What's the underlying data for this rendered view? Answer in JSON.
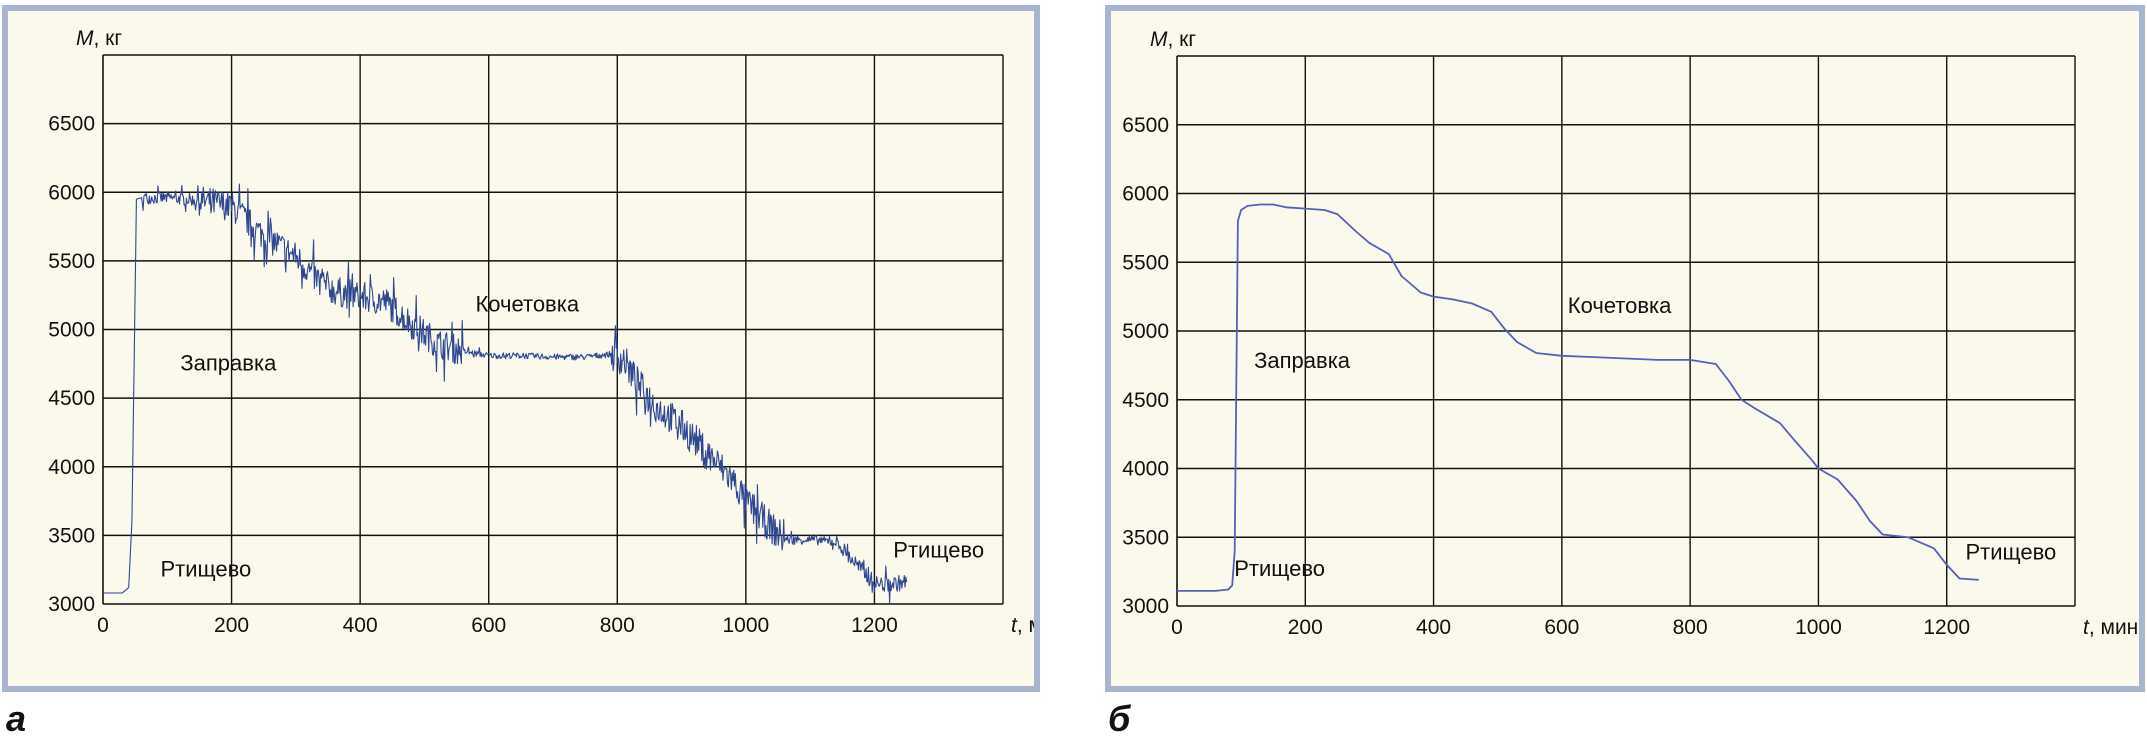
{
  "chart_data": [
    {
      "type": "line",
      "panel_label": "а",
      "ylabel_var": "M",
      "ylabel_unit": ", кг",
      "xlabel_var": "t",
      "xlabel_unit": ", мин",
      "xlim": [
        0,
        1400
      ],
      "ylim": [
        3000,
        7000
      ],
      "xticks": [
        0,
        200,
        400,
        600,
        800,
        1000,
        1200
      ],
      "yticks": [
        3000,
        3500,
        4000,
        4500,
        5000,
        5500,
        6000,
        6500
      ],
      "grid": true,
      "line_color": "#2e4790",
      "noisy": true,
      "series": [
        {
          "x": [
            0,
            30,
            40,
            45,
            52,
            60,
            100,
            150,
            200,
            240,
            300,
            330,
            360,
            400,
            440,
            480,
            520,
            560,
            600,
            650,
            700,
            750,
            790,
            810,
            830,
            860,
            900,
            940,
            980,
            1000,
            1030,
            1060,
            1100,
            1140,
            1180,
            1200,
            1220,
            1250
          ],
          "y": [
            3080,
            3080,
            3120,
            3600,
            5950,
            5960,
            5960,
            5940,
            5900,
            5720,
            5530,
            5380,
            5280,
            5240,
            5200,
            5040,
            4900,
            4840,
            4810,
            4810,
            4800,
            4800,
            4820,
            4780,
            4620,
            4440,
            4300,
            4100,
            3900,
            3750,
            3600,
            3470,
            3470,
            3450,
            3250,
            3150,
            3140,
            3160
          ]
        }
      ],
      "annotations": [
        {
          "text": "Кочетовка",
          "x": 660,
          "y": 5130
        },
        {
          "text": "Заправка",
          "x": 195,
          "y": 4700
        },
        {
          "text": "Ртищево",
          "x": 160,
          "y": 3200
        },
        {
          "text": "Ртищево",
          "x": 1300,
          "y": 3340
        }
      ]
    },
    {
      "type": "line",
      "panel_label": "б",
      "ylabel_var": "M",
      "ylabel_unit": ", кг",
      "xlabel_var": "t",
      "xlabel_unit": ", мин",
      "xlim": [
        0,
        1400
      ],
      "ylim": [
        3000,
        7000
      ],
      "xticks": [
        0,
        200,
        400,
        600,
        800,
        1000,
        1200
      ],
      "yticks": [
        3000,
        3500,
        4000,
        4500,
        5000,
        5500,
        6000,
        6500
      ],
      "grid": true,
      "line_color": "#5361b8",
      "noisy": false,
      "series": [
        {
          "x": [
            0,
            60,
            80,
            86,
            90,
            95,
            100,
            110,
            130,
            150,
            170,
            200,
            230,
            250,
            280,
            300,
            330,
            350,
            380,
            400,
            430,
            460,
            490,
            510,
            530,
            560,
            600,
            650,
            700,
            750,
            800,
            840,
            860,
            880,
            900,
            940,
            960,
            990,
            1000,
            1030,
            1060,
            1080,
            1100,
            1140,
            1180,
            1200,
            1220,
            1250
          ],
          "y": [
            3110,
            3110,
            3120,
            3150,
            3400,
            5800,
            5880,
            5910,
            5920,
            5920,
            5900,
            5890,
            5880,
            5850,
            5720,
            5640,
            5560,
            5400,
            5280,
            5250,
            5230,
            5200,
            5140,
            5020,
            4920,
            4840,
            4820,
            4810,
            4800,
            4790,
            4790,
            4760,
            4640,
            4500,
            4440,
            4330,
            4220,
            4060,
            4000,
            3920,
            3760,
            3620,
            3520,
            3500,
            3420,
            3300,
            3200,
            3190
          ]
        }
      ],
      "annotations": [
        {
          "text": "Кочетовка",
          "x": 690,
          "y": 5130
        },
        {
          "text": "Заправка",
          "x": 195,
          "y": 4730
        },
        {
          "text": "Ртищево",
          "x": 160,
          "y": 3220
        },
        {
          "text": "Ртищево",
          "x": 1300,
          "y": 3340
        }
      ]
    }
  ]
}
